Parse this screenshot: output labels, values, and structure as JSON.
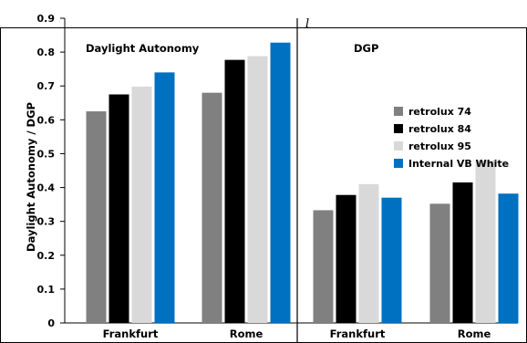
{
  "top_fragment": "l",
  "chart_data": {
    "type": "bar",
    "ylabel": "Daylight Autonomy / DGP",
    "ylim": [
      0,
      0.9
    ],
    "yticks": [
      "0",
      "0.1",
      "0.2",
      "0.3",
      "0.4",
      "0.5",
      "0.6",
      "0.7",
      "0.8",
      "0.9"
    ],
    "grid": false,
    "legend_position": "right",
    "panels": [
      {
        "title": "Daylight Autonomy",
        "categories": [
          "Frankfurt",
          "Rome"
        ]
      },
      {
        "title": "DGP",
        "categories": [
          "Frankfurt",
          "Rome"
        ]
      }
    ],
    "categories": [
      "Frankfurt",
      "Rome",
      "Frankfurt",
      "Rome"
    ],
    "series": [
      {
        "name": "retrolux 74",
        "color": "#808080",
        "values": [
          0.625,
          0.68,
          0.333,
          0.352
        ]
      },
      {
        "name": "retrolux 84",
        "color": "#000000",
        "values": [
          0.675,
          0.777,
          0.378,
          0.415
        ]
      },
      {
        "name": "retrolux 95",
        "color": "#d9d9d9",
        "values": [
          0.698,
          0.788,
          0.41,
          0.48
        ]
      },
      {
        "name": "Internal VB White",
        "color": "#0070c0",
        "values": [
          0.74,
          0.828,
          0.37,
          0.382
        ]
      }
    ]
  }
}
